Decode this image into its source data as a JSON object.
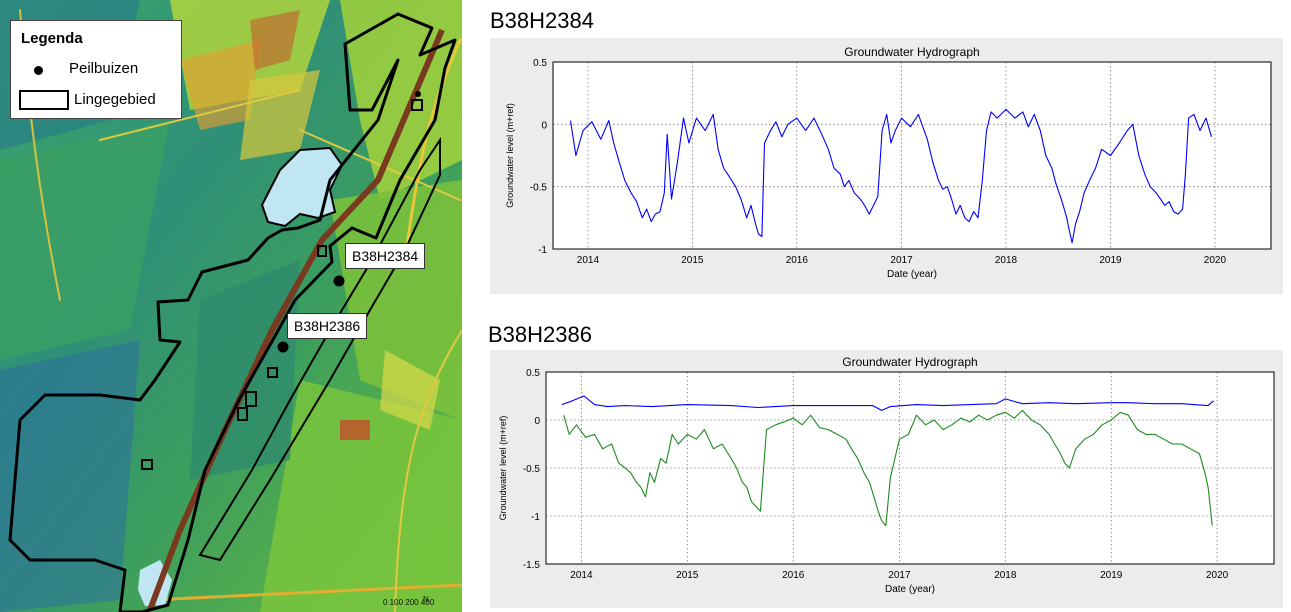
{
  "colors": {
    "series_blue": "#0000ff",
    "series_green": "#1f8a1f",
    "figure_bg": "#ececec",
    "water": "#bfe6f2",
    "boundary": "#000000"
  },
  "map": {
    "legend": {
      "title": "Legenda",
      "items": [
        "Peilbuizen",
        "Lingegebied"
      ]
    },
    "labels": {
      "well1": "B38H2384",
      "well2": "B38H2386"
    },
    "scale_text": "0  100  200   400",
    "north_text": "N"
  },
  "charts": [
    {
      "heading": "B38H2384",
      "plot_title": "Groundwater Hydrograph",
      "xlabel": "Date (year)",
      "ylabel": "Groundwater level (m+ref)"
    },
    {
      "heading": "B38H2386",
      "plot_title": "Groundwater Hydrograph",
      "xlabel": "Date (year)",
      "ylabel": "Groundwater level (m+ref)"
    }
  ],
  "chart_data": [
    {
      "type": "line",
      "title": "Groundwater Hydrograph",
      "xlabel": "Date (year)",
      "ylabel": "Groundwater level (m+ref)",
      "xlim": [
        "2013-09-01",
        "2020-07-15"
      ],
      "ylim": [
        -1,
        0.5
      ],
      "xticks": [
        "2014",
        "2015",
        "2016",
        "2017",
        "2018",
        "2019",
        "2020"
      ],
      "yticks": [
        "-1",
        "-0.5",
        "0",
        "0.5"
      ],
      "grid": true,
      "series": [
        {
          "color": "#0000ff",
          "x": [
            "2013-11-01",
            "2013-11-20",
            "2013-12-15",
            "2014-01-15",
            "2014-02-15",
            "2014-03-15",
            "2014-04-01",
            "2014-04-20",
            "2014-05-10",
            "2014-06-01",
            "2014-06-20",
            "2014-07-10",
            "2014-07-25",
            "2014-08-10",
            "2014-08-25",
            "2014-09-10",
            "2014-09-25",
            "2014-10-05",
            "2014-10-20",
            "2014-11-10",
            "2014-12-01",
            "2014-12-20",
            "2015-01-15",
            "2015-02-15",
            "2015-03-15",
            "2015-04-01",
            "2015-04-20",
            "2015-05-10",
            "2015-06-01",
            "2015-06-20",
            "2015-07-10",
            "2015-07-25",
            "2015-08-10",
            "2015-08-20",
            "2015-09-01",
            "2015-09-10",
            "2015-10-01",
            "2015-10-20",
            "2015-11-10",
            "2015-12-01",
            "2016-01-01",
            "2016-02-01",
            "2016-03-01",
            "2016-04-01",
            "2016-04-20",
            "2016-05-10",
            "2016-06-01",
            "2016-06-15",
            "2016-07-01",
            "2016-07-20",
            "2016-08-10",
            "2016-08-25",
            "2016-09-10",
            "2016-09-25",
            "2016-10-10",
            "2016-10-25",
            "2016-11-10",
            "2016-11-25",
            "2016-12-10",
            "2017-01-01",
            "2017-02-01",
            "2017-03-01",
            "2017-04-01",
            "2017-04-20",
            "2017-05-10",
            "2017-05-25",
            "2017-06-10",
            "2017-06-25",
            "2017-07-10",
            "2017-07-25",
            "2017-08-10",
            "2017-08-25",
            "2017-09-10",
            "2017-09-25",
            "2017-10-10",
            "2017-10-25",
            "2017-11-10",
            "2017-12-01",
            "2018-01-01",
            "2018-02-01",
            "2018-03-01",
            "2018-03-20",
            "2018-04-10",
            "2018-05-01",
            "2018-05-20",
            "2018-06-10",
            "2018-06-25",
            "2018-07-10",
            "2018-07-20",
            "2018-08-01",
            "2018-08-10",
            "2018-08-20",
            "2018-09-01",
            "2018-09-15",
            "2018-10-01",
            "2018-10-20",
            "2018-11-10",
            "2018-12-01",
            "2019-01-01",
            "2019-02-01",
            "2019-03-01",
            "2019-03-20",
            "2019-04-10",
            "2019-05-01",
            "2019-05-20",
            "2019-06-10",
            "2019-06-25",
            "2019-07-10",
            "2019-07-25",
            "2019-08-10",
            "2019-08-25",
            "2019-09-10",
            "2019-09-20",
            "2019-10-01",
            "2019-10-20",
            "2019-11-10",
            "2019-12-01",
            "2019-12-20"
          ],
          "y": [
            0.03,
            -0.25,
            -0.05,
            0.02,
            -0.12,
            0.03,
            -0.15,
            -0.3,
            -0.45,
            -0.55,
            -0.62,
            -0.75,
            -0.68,
            -0.78,
            -0.72,
            -0.7,
            -0.55,
            -0.08,
            -0.6,
            -0.3,
            0.05,
            -0.15,
            0.05,
            -0.05,
            0.08,
            -0.2,
            -0.35,
            -0.42,
            -0.5,
            -0.6,
            -0.75,
            -0.65,
            -0.8,
            -0.88,
            -0.9,
            -0.15,
            -0.05,
            0.02,
            -0.1,
            0.0,
            0.05,
            -0.05,
            0.05,
            -0.1,
            -0.2,
            -0.35,
            -0.4,
            -0.5,
            -0.45,
            -0.55,
            -0.6,
            -0.65,
            -0.72,
            -0.65,
            -0.58,
            -0.05,
            0.08,
            -0.15,
            -0.05,
            0.05,
            -0.02,
            0.08,
            -0.12,
            -0.3,
            -0.45,
            -0.52,
            -0.5,
            -0.6,
            -0.72,
            -0.65,
            -0.75,
            -0.78,
            -0.7,
            -0.75,
            -0.45,
            -0.05,
            0.1,
            0.05,
            0.12,
            0.05,
            0.1,
            -0.02,
            0.08,
            -0.05,
            -0.25,
            -0.35,
            -0.48,
            -0.58,
            -0.65,
            -0.75,
            -0.85,
            -0.95,
            -0.8,
            -0.7,
            -0.55,
            -0.45,
            -0.35,
            -0.2,
            -0.25,
            -0.15,
            -0.05,
            0.0,
            -0.25,
            -0.4,
            -0.5,
            -0.55,
            -0.6,
            -0.65,
            -0.62,
            -0.7,
            -0.72,
            -0.68,
            -0.4,
            0.05,
            0.08,
            -0.05,
            0.05,
            -0.1
          ]
        }
      ]
    },
    {
      "type": "line",
      "title": "Groundwater Hydrograph",
      "xlabel": "Date (year)",
      "ylabel": "Groundwater level (m+ref)",
      "xlim": [
        "2013-09-01",
        "2020-07-15"
      ],
      "ylim": [
        -1.5,
        0.5
      ],
      "xticks": [
        "2014",
        "2015",
        "2016",
        "2017",
        "2018",
        "2019",
        "2020"
      ],
      "yticks": [
        "-1.5",
        "-1",
        "-0.5",
        "0",
        "0.5"
      ],
      "grid": true,
      "series": [
        {
          "color": "#0000ff",
          "x": [
            "2013-10-25",
            "2013-12-01",
            "2014-01-10",
            "2014-02-15",
            "2014-04-01",
            "2014-06-01",
            "2014-09-01",
            "2015-01-01",
            "2015-06-01",
            "2015-09-01",
            "2016-01-01",
            "2016-06-01",
            "2016-10-01",
            "2016-11-01",
            "2016-12-01",
            "2017-03-01",
            "2017-06-01",
            "2017-09-01",
            "2017-12-01",
            "2018-01-01",
            "2018-03-01",
            "2018-06-01",
            "2018-09-01",
            "2019-01-01",
            "2019-03-01",
            "2019-06-01",
            "2019-09-01",
            "2019-12-01",
            "2019-12-20"
          ],
          "y": [
            0.16,
            0.2,
            0.25,
            0.16,
            0.14,
            0.15,
            0.14,
            0.16,
            0.15,
            0.13,
            0.15,
            0.15,
            0.15,
            0.1,
            0.14,
            0.16,
            0.15,
            0.16,
            0.17,
            0.22,
            0.17,
            0.18,
            0.17,
            0.18,
            0.18,
            0.17,
            0.17,
            0.15,
            0.2
          ]
        },
        {
          "color": "#1f8a1f",
          "x": [
            "2013-11-01",
            "2013-11-20",
            "2013-12-15",
            "2014-01-15",
            "2014-02-15",
            "2014-03-15",
            "2014-04-15",
            "2014-05-10",
            "2014-06-01",
            "2014-06-20",
            "2014-07-10",
            "2014-07-25",
            "2014-08-10",
            "2014-08-25",
            "2014-09-10",
            "2014-10-01",
            "2014-10-20",
            "2014-11-10",
            "2014-12-01",
            "2015-01-01",
            "2015-02-01",
            "2015-03-01",
            "2015-04-01",
            "2015-05-01",
            "2015-06-01",
            "2015-06-20",
            "2015-07-10",
            "2015-07-25",
            "2015-08-10",
            "2015-08-25",
            "2015-09-10",
            "2015-10-01",
            "2015-11-01",
            "2015-12-01",
            "2016-01-01",
            "2016-02-01",
            "2016-03-01",
            "2016-04-01",
            "2016-05-01",
            "2016-06-01",
            "2016-07-01",
            "2016-07-20",
            "2016-08-10",
            "2016-09-01",
            "2016-09-20",
            "2016-10-05",
            "2016-10-20",
            "2016-11-01",
            "2016-11-15",
            "2016-12-01",
            "2017-01-01",
            "2017-02-01",
            "2017-03-01",
            "2017-04-01",
            "2017-05-01",
            "2017-06-01",
            "2017-07-01",
            "2017-08-01",
            "2017-09-01",
            "2017-10-01",
            "2017-11-01",
            "2017-12-01",
            "2018-01-01",
            "2018-02-01",
            "2018-03-01",
            "2018-04-01",
            "2018-05-01",
            "2018-06-01",
            "2018-06-20",
            "2018-07-10",
            "2018-07-25",
            "2018-08-10",
            "2018-09-01",
            "2018-10-01",
            "2018-11-01",
            "2018-12-01",
            "2019-01-01",
            "2019-02-01",
            "2019-03-01",
            "2019-04-01",
            "2019-05-01",
            "2019-06-01",
            "2019-07-01",
            "2019-08-01",
            "2019-09-01",
            "2019-10-01",
            "2019-11-01",
            "2019-11-20",
            "2019-12-01",
            "2019-12-10",
            "2019-12-15"
          ],
          "y": [
            0.05,
            -0.15,
            -0.05,
            -0.18,
            -0.15,
            -0.3,
            -0.25,
            -0.45,
            -0.5,
            -0.55,
            -0.65,
            -0.7,
            -0.8,
            -0.55,
            -0.65,
            -0.4,
            -0.45,
            -0.15,
            -0.25,
            -0.15,
            -0.2,
            -0.1,
            -0.3,
            -0.25,
            -0.4,
            -0.5,
            -0.65,
            -0.7,
            -0.85,
            -0.9,
            -0.95,
            -0.1,
            -0.05,
            -0.02,
            0.02,
            -0.05,
            0.05,
            -0.08,
            -0.1,
            -0.15,
            -0.2,
            -0.3,
            -0.4,
            -0.55,
            -0.65,
            -0.8,
            -0.95,
            -1.05,
            -1.1,
            -0.6,
            -0.2,
            -0.15,
            0.05,
            -0.05,
            0.0,
            -0.1,
            -0.05,
            0.02,
            -0.02,
            0.05,
            0.0,
            0.05,
            0.08,
            0.02,
            0.1,
            0.0,
            -0.05,
            -0.15,
            -0.25,
            -0.35,
            -0.45,
            -0.5,
            -0.3,
            -0.2,
            -0.15,
            -0.05,
            0.0,
            0.08,
            0.05,
            -0.1,
            -0.15,
            -0.15,
            -0.2,
            -0.25,
            -0.25,
            -0.3,
            -0.35,
            -0.55,
            -0.7,
            -0.95,
            -1.1
          ]
        }
      ]
    }
  ]
}
